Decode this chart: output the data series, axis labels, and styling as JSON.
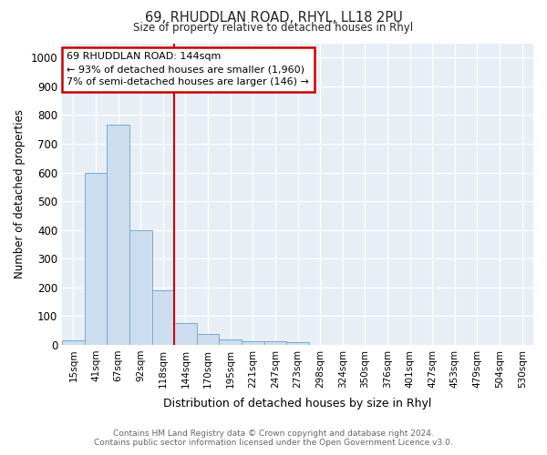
{
  "title": "69, RHUDDLAN ROAD, RHYL, LL18 2PU",
  "subtitle": "Size of property relative to detached houses in Rhyl",
  "xlabel": "Distribution of detached houses by size in Rhyl",
  "ylabel": "Number of detached properties",
  "categories": [
    "15sqm",
    "41sqm",
    "67sqm",
    "92sqm",
    "118sqm",
    "144sqm",
    "170sqm",
    "195sqm",
    "221sqm",
    "247sqm",
    "273sqm",
    "298sqm",
    "324sqm",
    "350sqm",
    "376sqm",
    "401sqm",
    "427sqm",
    "453sqm",
    "479sqm",
    "504sqm",
    "530sqm"
  ],
  "values": [
    15,
    600,
    765,
    400,
    190,
    75,
    38,
    18,
    13,
    12,
    8,
    0,
    0,
    0,
    0,
    0,
    0,
    0,
    0,
    0,
    0
  ],
  "bar_color": "#ccddf0",
  "bar_edge_color": "#7aaac8",
  "red_line_index": 5,
  "annotation_title": "69 RHUDDLAN ROAD: 144sqm",
  "annotation_line2": "← 93% of detached houses are smaller (1,960)",
  "annotation_line3": "7% of semi-detached houses are larger (146) →",
  "annotation_box_color": "#ffffff",
  "annotation_box_edge_color": "#cc0000",
  "red_line_color": "#cc0000",
  "ylim": [
    0,
    1050
  ],
  "yticks": [
    0,
    100,
    200,
    300,
    400,
    500,
    600,
    700,
    800,
    900,
    1000
  ],
  "footer1": "Contains HM Land Registry data © Crown copyright and database right 2024.",
  "footer2": "Contains public sector information licensed under the Open Government Licence v3.0.",
  "bg_color": "#ffffff",
  "plot_bg_color": "#e8eef5",
  "grid_color": "#ffffff"
}
